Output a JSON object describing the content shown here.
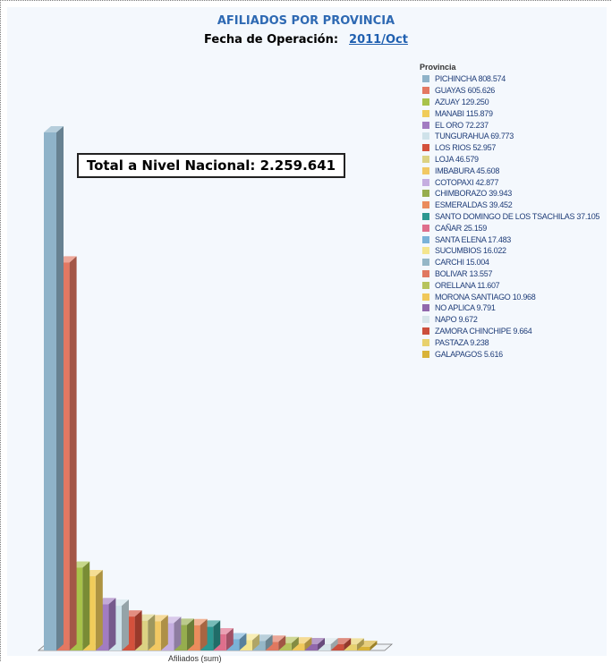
{
  "title": "AFILIADOS POR PROVINCIA",
  "subtitle_label": "Fecha de Operación:",
  "subtitle_link": "2011/Oct",
  "total_text": "Total a Nivel Nacional:  2.259.641",
  "x_axis_label": "Afiliados (sum)",
  "legend_title": "Provincia",
  "chart_data": {
    "type": "bar",
    "title": "AFILIADOS POR PROVINCIA",
    "xlabel": "Afiliados (sum)",
    "ylabel": "",
    "ylim": [
      0,
      808574
    ],
    "legend_placement": "right",
    "grid": false,
    "categories": [
      "PICHINCHA",
      "GUAYAS",
      "AZUAY",
      "MANABI",
      "EL ORO",
      "TUNGURAHUA",
      "LOS RIOS",
      "LOJA",
      "IMBABURA",
      "COTOPAXI",
      "CHIMBORAZO",
      "ESMERALDAS",
      "SANTO DOMINGO DE LOS TSACHILAS",
      "CAÑAR",
      "SANTA ELENA",
      "SUCUMBIOS",
      "CARCHI",
      "BOLIVAR",
      "ORELLANA",
      "MORONA SANTIAGO",
      "NO APLICA",
      "NAPO",
      "ZAMORA CHINCHIPE",
      "PASTAZA",
      "GALAPAGOS"
    ],
    "values": [
      808574,
      605626,
      129250,
      115879,
      72237,
      69773,
      52957,
      46579,
      45608,
      42877,
      39943,
      39452,
      37105,
      25159,
      17483,
      16022,
      15004,
      13557,
      11607,
      10968,
      9791,
      9672,
      9664,
      9238,
      5616
    ],
    "legend_labels": [
      "PICHINCHA 808.574",
      "GUAYAS 605.626",
      "AZUAY 129.250",
      "MANABI 115.879",
      "EL ORO 72.237",
      "TUNGURAHUA 69.773",
      "LOS RIOS 52.957",
      "LOJA 46.579",
      "IMBABURA 45.608",
      "COTOPAXI 42.877",
      "CHIMBORAZO 39.943",
      "ESMERALDAS 39.452",
      "SANTO DOMINGO DE LOS TSACHILAS 37.105",
      "CAÑAR 25.159",
      "SANTA ELENA 17.483",
      "SUCUMBIOS 16.022",
      "CARCHI 15.004",
      "BOLIVAR 13.557",
      "ORELLANA 11.607",
      "MORONA SANTIAGO 10.968",
      "NO APLICA 9.791",
      "NAPO 9.672",
      "ZAMORA CHINCHIPE 9.664",
      "PASTAZA 9.238",
      "GALAPAGOS 5.616"
    ],
    "colors": [
      "#8fb3c9",
      "#e37862",
      "#a8c24a",
      "#f0cc5a",
      "#a27cc2",
      "#cfe2ea",
      "#d4513c",
      "#dcd283",
      "#f1c863",
      "#c5aee0",
      "#96ad4e",
      "#ea8c5c",
      "#2c9790",
      "#df6f8c",
      "#7ab2d8",
      "#f4e58e",
      "#95b7c7",
      "#e07860",
      "#b6c35c",
      "#f0c85a",
      "#9168ac",
      "#d7e5ea",
      "#cc4f3c",
      "#e8d16d",
      "#d9b338"
    ]
  }
}
